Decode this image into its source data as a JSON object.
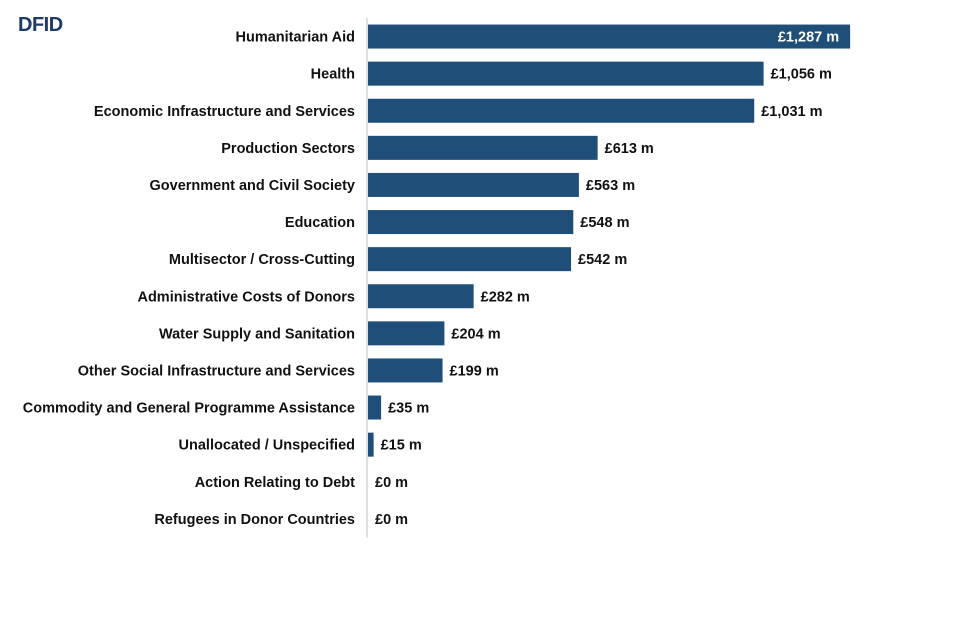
{
  "title": "DFID",
  "colors": {
    "bar": "#1f4e79",
    "axis": "#bfbfbf",
    "label_outside": "#111111",
    "label_inside": "#ffffff"
  },
  "chart_data": {
    "type": "bar",
    "orientation": "horizontal",
    "title": "DFID",
    "xlabel": "",
    "ylabel": "",
    "unit_prefix": "£",
    "unit_suffix": " m",
    "xlim": [
      0,
      1300
    ],
    "grid": false,
    "categories": [
      "Humanitarian Aid",
      "Health",
      "Economic Infrastructure and Services",
      "Production Sectors",
      "Government and Civil Society",
      "Education",
      "Multisector / Cross-Cutting",
      "Administrative Costs of Donors",
      "Water Supply and Sanitation",
      "Other Social Infrastructure and Services",
      "Commodity and General Programme Assistance",
      "Unallocated / Unspecified",
      "Action Relating to Debt",
      "Refugees in Donor Countries"
    ],
    "values": [
      1287,
      1056,
      1031,
      613,
      563,
      548,
      542,
      282,
      204,
      199,
      35,
      15,
      0,
      0
    ],
    "value_labels": [
      "£1,287 m",
      "£1,056 m",
      "£1,031 m",
      "£613 m",
      "£563 m",
      "£548 m",
      "£542 m",
      "£282 m",
      "£204 m",
      "£199 m",
      "£35 m",
      "£15 m",
      "£0 m",
      "£0 m"
    ]
  }
}
